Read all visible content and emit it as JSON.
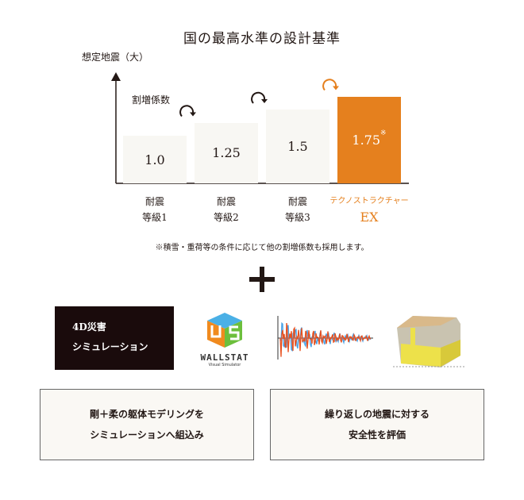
{
  "title": "国の最高水準の設計基準",
  "chart_data": {
    "type": "bar",
    "ylabel": "想定地震（大）",
    "value_label": "割増係数",
    "categories": [
      [
        "耐震",
        "等級1"
      ],
      [
        "耐震",
        "等級2"
      ],
      [
        "耐震",
        "等級3"
      ],
      [
        "テクノストラクチャー",
        "EX"
      ]
    ],
    "values": [
      1.0,
      1.25,
      1.5,
      1.75
    ],
    "value_texts": [
      "1.0",
      "1.25",
      "1.5",
      "1.75"
    ],
    "highlight_mark": "※",
    "colors": {
      "bar": "#f8f7f3",
      "highlight": "#e5801e",
      "text": "#231815"
    }
  },
  "note": "※積雪・重荷等の条件に応じて他の割増係数も採用します。",
  "sim": {
    "line1": "4D災害",
    "line2": "シミュレーション"
  },
  "wallstat": {
    "name": "WALLSTAT",
    "sub": "Visual Simulator"
  },
  "boxes": [
    {
      "line1": "剛＋柔の躯体モデリングを",
      "line2": "シミュレーションへ組込み"
    },
    {
      "line1": "繰り返しの地震に対する",
      "line2": "安全性を評価"
    }
  ]
}
